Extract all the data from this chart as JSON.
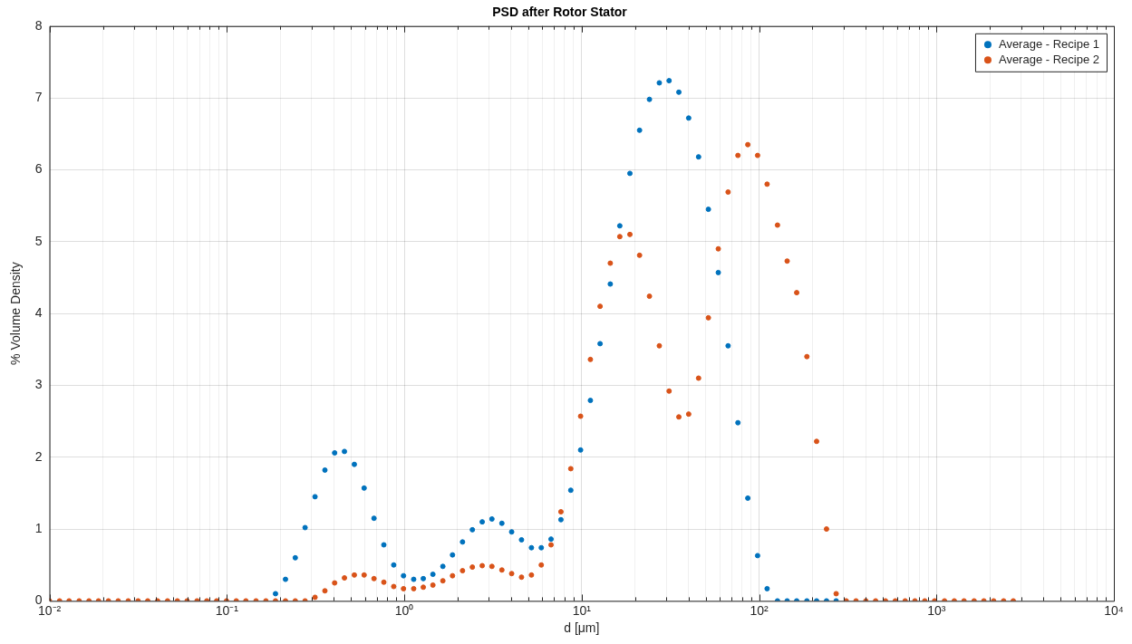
{
  "chart_data": {
    "type": "scatter",
    "title": "PSD after Rotor Stator",
    "xlabel": "d [μm]",
    "ylabel": "% Volume Density",
    "x": [
      0.01,
      0.0114,
      0.0129,
      0.0147,
      0.0167,
      0.0189,
      0.0215,
      0.0244,
      0.0278,
      0.0316,
      0.0358,
      0.0407,
      0.0463,
      0.0526,
      0.0597,
      0.0679,
      0.0771,
      0.0876,
      0.0995,
      0.113,
      0.128,
      0.146,
      0.166,
      0.188,
      0.214,
      0.243,
      0.276,
      0.314,
      0.357,
      0.405,
      0.46,
      0.523,
      0.594,
      0.675,
      0.767,
      0.872,
      0.99,
      1.13,
      1.28,
      1.45,
      1.65,
      1.87,
      2.13,
      2.42,
      2.75,
      3.12,
      3.55,
      4.03,
      4.58,
      5.21,
      5.92,
      6.72,
      7.64,
      8.68,
      9.86,
      11.2,
      12.7,
      14.5,
      16.4,
      18.7,
      21.2,
      24.1,
      27.4,
      31.1,
      35.3,
      40.1,
      45.6,
      51.8,
      58.9,
      66.9,
      76.0,
      86.4,
      98.1,
      111,
      127,
      144,
      163,
      186,
      211,
      240,
      272,
      310,
      352,
      400,
      454,
      516,
      586,
      666,
      756,
      859,
      976,
      1110,
      1260,
      1430,
      1630,
      1850,
      2100,
      2390,
      2710
    ],
    "series": [
      {
        "name": "Average - Recipe 1",
        "color": "#0072bd",
        "values": [
          null,
          null,
          null,
          null,
          null,
          null,
          null,
          null,
          null,
          null,
          null,
          null,
          null,
          null,
          null,
          null,
          null,
          null,
          null,
          null,
          null,
          null,
          null,
          0.1,
          0.3,
          0.6,
          1.02,
          1.45,
          1.82,
          2.06,
          2.08,
          1.9,
          1.57,
          1.15,
          0.78,
          0.5,
          0.35,
          0.3,
          0.31,
          0.37,
          0.48,
          0.64,
          0.82,
          0.99,
          1.1,
          1.14,
          1.08,
          0.96,
          0.85,
          0.74,
          0.74,
          0.86,
          1.13,
          1.54,
          2.1,
          2.79,
          3.58,
          4.41,
          5.22,
          5.95,
          6.55,
          6.98,
          7.21,
          7.24,
          7.08,
          6.72,
          6.18,
          5.45,
          4.57,
          3.55,
          2.48,
          1.43,
          0.63,
          0.17,
          0,
          0,
          0,
          0,
          0,
          0,
          0,
          null,
          null,
          null,
          null,
          null,
          null,
          null,
          null,
          null,
          null,
          null,
          null,
          null,
          null,
          null,
          null,
          null,
          null
        ]
      },
      {
        "name": "Average - Recipe 2",
        "color": "#d95319",
        "values": [
          0,
          0,
          0,
          0,
          0,
          0,
          0,
          0,
          0,
          0,
          0,
          0,
          0,
          0,
          0,
          0,
          0,
          0,
          0,
          0,
          0,
          0,
          0,
          0,
          0,
          0,
          0,
          0.05,
          0.14,
          0.25,
          0.32,
          0.36,
          0.36,
          0.31,
          0.26,
          0.2,
          0.17,
          0.17,
          0.19,
          0.22,
          0.28,
          0.35,
          0.42,
          0.47,
          0.49,
          0.48,
          0.43,
          0.38,
          0.33,
          0.36,
          0.5,
          0.78,
          1.24,
          1.84,
          2.57,
          3.36,
          4.1,
          4.7,
          5.07,
          5.1,
          4.81,
          4.24,
          3.55,
          2.92,
          2.56,
          2.6,
          3.1,
          3.94,
          4.9,
          5.69,
          6.2,
          6.35,
          6.2,
          5.8,
          5.23,
          4.73,
          4.29,
          3.4,
          2.22,
          1.0,
          0.1,
          0,
          0,
          0,
          0,
          0,
          0,
          0,
          0,
          0,
          0,
          0,
          0,
          0,
          0,
          0,
          0,
          0,
          0
        ]
      }
    ],
    "log": "x",
    "xlim": [
      0.01,
      10000
    ],
    "xticks": [
      {
        "value": 0.01,
        "label": "10⁻²"
      },
      {
        "value": 0.02,
        "label": null
      },
      {
        "value": 0.03,
        "label": null
      },
      {
        "value": 0.04,
        "label": null
      },
      {
        "value": 0.05,
        "label": null
      },
      {
        "value": 0.06,
        "label": null
      },
      {
        "value": 0.07,
        "label": null
      },
      {
        "value": 0.08,
        "label": null
      },
      {
        "value": 0.09,
        "label": null
      },
      {
        "value": 0.1,
        "label": "10⁻¹"
      },
      {
        "value": 0.2,
        "label": null
      },
      {
        "value": 0.3,
        "label": null
      },
      {
        "value": 0.4,
        "label": null
      },
      {
        "value": 0.5,
        "label": null
      },
      {
        "value": 0.6,
        "label": null
      },
      {
        "value": 0.7,
        "label": null
      },
      {
        "value": 0.8,
        "label": null
      },
      {
        "value": 0.9,
        "label": null
      },
      {
        "value": 1,
        "label": "10⁰"
      },
      {
        "value": 2,
        "label": null
      },
      {
        "value": 3,
        "label": null
      },
      {
        "value": 4,
        "label": null
      },
      {
        "value": 5,
        "label": null
      },
      {
        "value": 6,
        "label": null
      },
      {
        "value": 7,
        "label": null
      },
      {
        "value": 8,
        "label": null
      },
      {
        "value": 9,
        "label": null
      },
      {
        "value": 10,
        "label": "10¹"
      },
      {
        "value": 20,
        "label": null
      },
      {
        "value": 30,
        "label": null
      },
      {
        "value": 40,
        "label": null
      },
      {
        "value": 50,
        "label": null
      },
      {
        "value": 60,
        "label": null
      },
      {
        "value": 70,
        "label": null
      },
      {
        "value": 80,
        "label": null
      },
      {
        "value": 90,
        "label": null
      },
      {
        "value": 100,
        "label": "10²"
      },
      {
        "value": 200,
        "label": null
      },
      {
        "value": 300,
        "label": null
      },
      {
        "value": 400,
        "label": null
      },
      {
        "value": 500,
        "label": null
      },
      {
        "value": 600,
        "label": null
      },
      {
        "value": 700,
        "label": null
      },
      {
        "value": 800,
        "label": null
      },
      {
        "value": 900,
        "label": null
      },
      {
        "value": 1000,
        "label": "10³"
      },
      {
        "value": 2000,
        "label": null
      },
      {
        "value": 3000,
        "label": null
      },
      {
        "value": 4000,
        "label": null
      },
      {
        "value": 5000,
        "label": null
      },
      {
        "value": 6000,
        "label": null
      },
      {
        "value": 7000,
        "label": null
      },
      {
        "value": 8000,
        "label": null
      },
      {
        "value": 9000,
        "label": null
      },
      {
        "value": 10000,
        "label": "10⁴"
      }
    ],
    "ylim": [
      0,
      8
    ],
    "yticks": [
      0,
      1,
      2,
      3,
      4,
      5,
      6,
      7,
      8
    ],
    "grid": true,
    "legend": "top right",
    "marker": "circle"
  }
}
